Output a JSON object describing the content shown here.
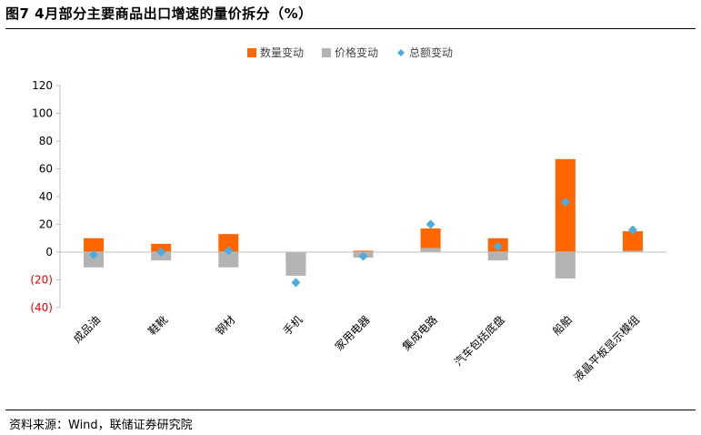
{
  "title": "图7  4月部分主要商品出口增速的量价拆分（%）",
  "source": "资料来源：Wind，联储证券研究院",
  "colors": {
    "quantity": "#FF6600",
    "price": "#B3B3B3",
    "total": "#4BACE0",
    "negative_tick": "#E00000"
  },
  "chart_data": {
    "type": "bar",
    "categories": [
      "成品油",
      "鞋靴",
      "钢材",
      "手机",
      "家用电器",
      "集成电路",
      "汽车包括底盘",
      "船舶",
      "液晶平板显示模组"
    ],
    "series": [
      {
        "name": "数量变动",
        "kind": "bar",
        "values": [
          10,
          6,
          13,
          -6,
          1,
          17,
          10,
          67,
          15
        ]
      },
      {
        "name": "价格变动",
        "kind": "bar",
        "values": [
          -11,
          -6,
          -11,
          -17,
          -4,
          3,
          -6,
          -19,
          1
        ]
      },
      {
        "name": "总额变动",
        "kind": "marker",
        "values": [
          -2,
          0,
          1,
          -22,
          -3,
          20,
          4,
          36,
          16
        ]
      }
    ],
    "yticks": [
      "120",
      "100",
      "80",
      "60",
      "40",
      "20",
      "0",
      "(20)",
      "(40)"
    ],
    "ylim": [
      -40,
      120
    ],
    "legend_position": "top-center",
    "grid": false
  }
}
